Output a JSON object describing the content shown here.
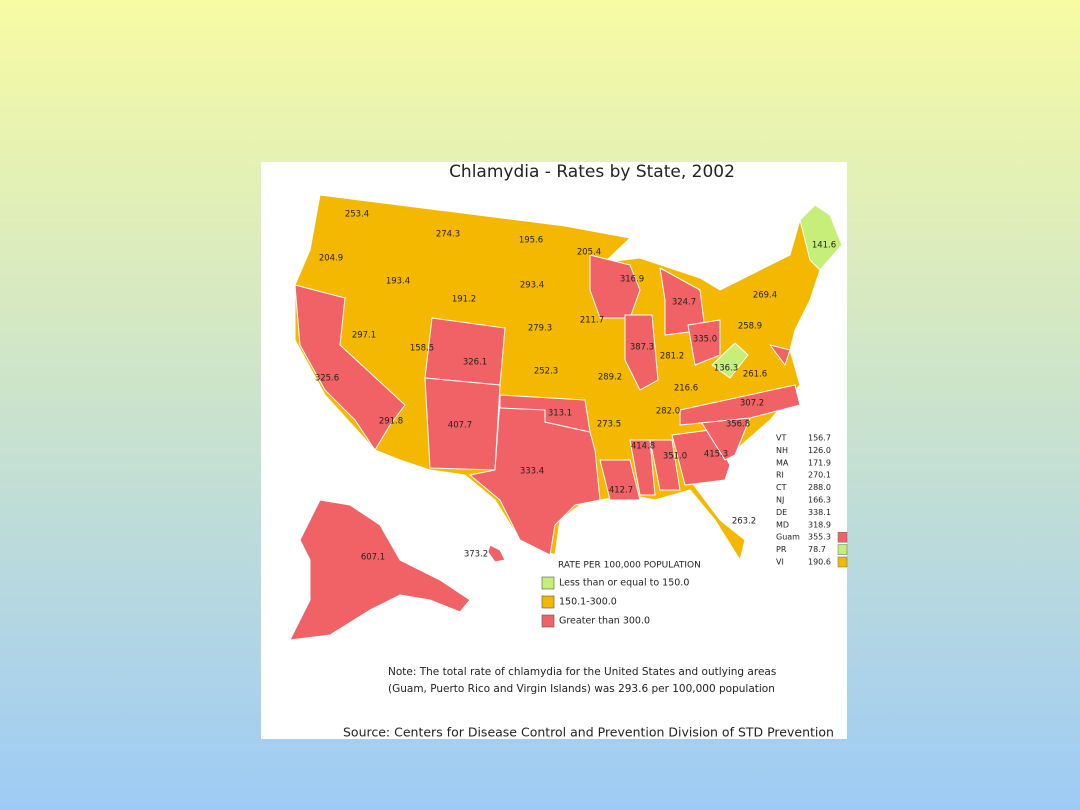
{
  "title": "Chlamydia - Rates by State, 2002",
  "map_labels": [
    "253.4",
    "274.3",
    "195.6",
    "205.4",
    "204.9",
    "193.4",
    "293.4",
    "316.9",
    "141.6",
    "191.2",
    "324.7",
    "269.4",
    "211.7",
    "279.3",
    "297.1",
    "258.9",
    "335.0",
    "387.3",
    "158.5",
    "326.1",
    "281.2",
    "252.3",
    "289.2",
    "136.3",
    "261.6",
    "325.6",
    "216.6",
    "307.2",
    "313.1",
    "282.0",
    "291.8",
    "407.7",
    "273.5",
    "356.8",
    "414.8",
    "351.0",
    "415.3",
    "333.4",
    "412.7",
    "263.2",
    "607.1",
    "373.2"
  ],
  "inset_table": [
    {
      "abbr": "VT",
      "value": "156.7"
    },
    {
      "abbr": "NH",
      "value": "126.0"
    },
    {
      "abbr": "MA",
      "value": "171.9"
    },
    {
      "abbr": "RI",
      "value": "270.1"
    },
    {
      "abbr": "CT",
      "value": "288.0"
    },
    {
      "abbr": "NJ",
      "value": "166.3"
    },
    {
      "abbr": "DE",
      "value": "338.1"
    },
    {
      "abbr": "MD",
      "value": "318.9"
    },
    {
      "abbr": "Guam",
      "value": "355.3",
      "color": "#f06266"
    },
    {
      "abbr": "PR",
      "value": "78.7",
      "color": "#c6ef7a"
    },
    {
      "abbr": "VI",
      "value": "190.6",
      "color": "#f5b800"
    }
  ],
  "legend": {
    "title": "RATE PER 100,000 POPULATION",
    "items": [
      {
        "label": "Less than or equal to 150.0",
        "color": "#c6ef7a"
      },
      {
        "label": "150.1-300.0",
        "color": "#f5b800"
      },
      {
        "label": "Greater than 300.0",
        "color": "#f06266"
      }
    ]
  },
  "note": [
    "Note: The total rate of chlamydia for the United States and outlying areas",
    "(Guam, Puerto Rico and Virgin Islands) was 293.6 per 100,000 population"
  ],
  "source": "Source: Centers for Disease Control and Prevention Division of STD Prevention"
}
